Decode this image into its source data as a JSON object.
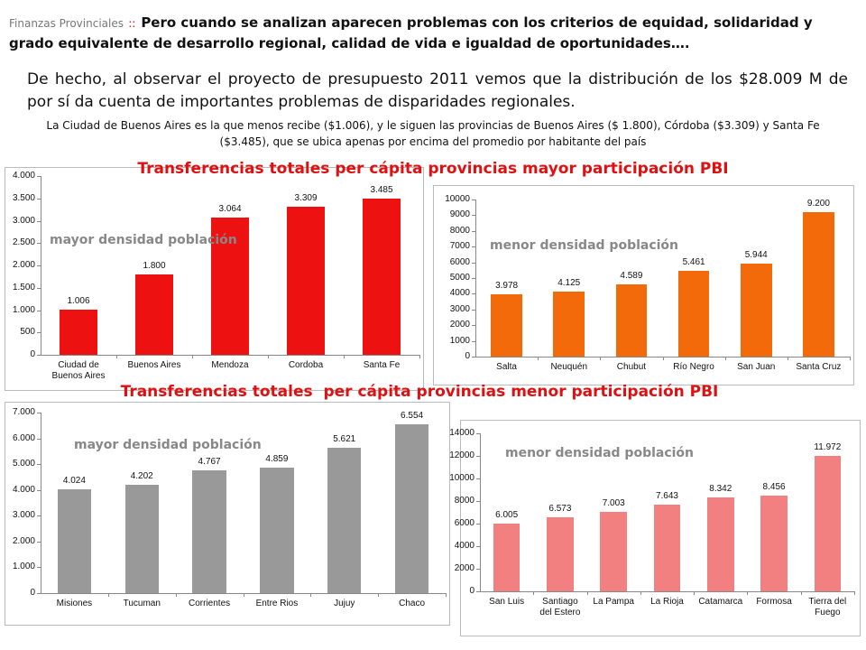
{
  "header": {
    "section": "Finanzas Provinciales",
    "separator": "::",
    "lead": "Pero cuando se analizan aparecen problemas con los criterios de equidad, solidaridad y grado equivalente de desarrollo regional, calidad de vida e igualdad de oportunidades…."
  },
  "paragraph": "De hecho, al observar el proyecto de presupuesto 2011 vemos que la distribución de los $28.009 M de por sí da cuenta de importantes problemas de disparidades regionales.",
  "note": "La Ciudad de Buenos Aires es la que menos recibe ($1.006), y le siguen las provincias de Buenos Aires ($ 1.800), Córdoba ($3.309) y Santa Fe ($3.485), que se ubica apenas por encima del promedio por habitante del país",
  "section_titles": [
    "Transferencias totales per cápita provincias mayor participación PBI",
    "Transferencias totales  per cápita provincias menor participación PBI"
  ],
  "chart_data": [
    {
      "type": "bar",
      "annotation": "mayor densidad población",
      "color": "#ee1111",
      "categories": [
        "Ciudad de Buenos Aires",
        "Buenos Aires",
        "Mendoza",
        "Cordoba",
        "Santa Fe"
      ],
      "values": [
        1006,
        1800,
        3064,
        3309,
        3485
      ],
      "value_labels": [
        "1.006",
        "1.800",
        "3.064",
        "3.309",
        "3.485"
      ],
      "ylim": [
        0,
        4000
      ],
      "yticks": [
        0,
        {
          "value": 500,
          "label": "500"
        },
        {
          "value": 1000,
          "label": "1.000"
        },
        {
          "value": 1500,
          "label": "1.500"
        },
        {
          "value": 2000,
          "label": "2.000"
        },
        {
          "value": 2500,
          "label": "2.500"
        },
        {
          "value": 3000,
          "label": "3.000"
        },
        {
          "value": 3500,
          "label": "3.500"
        },
        {
          "value": 4000,
          "label": "4.000"
        }
      ]
    },
    {
      "type": "bar",
      "annotation": "menor densidad población",
      "color": "#f26a0a",
      "categories": [
        "Salta",
        "Neuquén",
        "Chubut",
        "Río Negro",
        "San Juan",
        "Santa Cruz"
      ],
      "values": [
        3978,
        4125,
        4589,
        5461,
        5944,
        9200
      ],
      "value_labels": [
        "3.978",
        "4.125",
        "4.589",
        "5.461",
        "5.944",
        "9.200"
      ],
      "ylim": [
        0,
        10000
      ],
      "yticks": [
        0,
        1000,
        2000,
        3000,
        4000,
        5000,
        6000,
        7000,
        8000,
        9000,
        10000
      ]
    },
    {
      "type": "bar",
      "annotation": "mayor densidad población",
      "color": "#999999",
      "categories": [
        "Misiones",
        "Tucuman",
        "Corrientes",
        "Entre Rios",
        "Jujuy",
        "Chaco"
      ],
      "values": [
        4024,
        4202,
        4767,
        4859,
        5621,
        6554
      ],
      "value_labels": [
        "4.024",
        "4.202",
        "4.767",
        "4.859",
        "5.621",
        "6.554"
      ],
      "ylim": [
        0,
        7000
      ],
      "yticks": [
        0,
        {
          "value": 1000,
          "label": "1.000"
        },
        {
          "value": 2000,
          "label": "2.000"
        },
        {
          "value": 3000,
          "label": "3.000"
        },
        {
          "value": 4000,
          "label": "4.000"
        },
        {
          "value": 5000,
          "label": "5.000"
        },
        {
          "value": 6000,
          "label": "6.000"
        },
        {
          "value": 7000,
          "label": "7.000"
        }
      ]
    },
    {
      "type": "bar",
      "annotation": "menor densidad población",
      "color": "#f38080",
      "categories": [
        "San Luis",
        "Santiago del Estero",
        "La Pampa",
        "La Rioja",
        "Catamarca",
        "Formosa",
        "Tierra del Fuego"
      ],
      "values": [
        6005,
        6573,
        7003,
        7643,
        8342,
        8456,
        11972
      ],
      "value_labels": [
        "6.005",
        "6.573",
        "7.003",
        "7.643",
        "8.342",
        "8.456",
        "11.972"
      ],
      "ylim": [
        0,
        14000
      ],
      "yticks": [
        0,
        2000,
        4000,
        6000,
        8000,
        10000,
        12000,
        14000
      ]
    }
  ]
}
